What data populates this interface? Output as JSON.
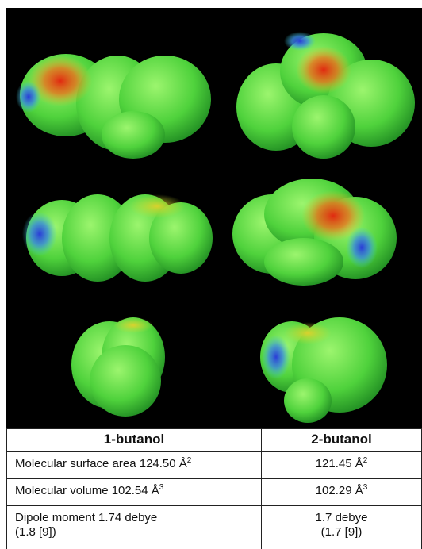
{
  "table": {
    "header": [
      "1-butanol",
      "2-butanol"
    ],
    "rows": [
      [
        {
          "text": "Molecular surface area 124.50 Å",
          "sup": "2"
        },
        {
          "text": "121.45 Å",
          "sup": "2"
        }
      ],
      [
        {
          "text": "Molecular volume 102.54 Å",
          "sup": "3"
        },
        {
          "text": "102.29 Å",
          "sup": "3"
        }
      ],
      [
        {
          "lines": [
            "Dipole moment 1.74 debye",
            "(1.8 [9])"
          ]
        },
        {
          "lines": [
            "1.7 debye",
            "(1.7 [9])"
          ]
        }
      ]
    ]
  }
}
